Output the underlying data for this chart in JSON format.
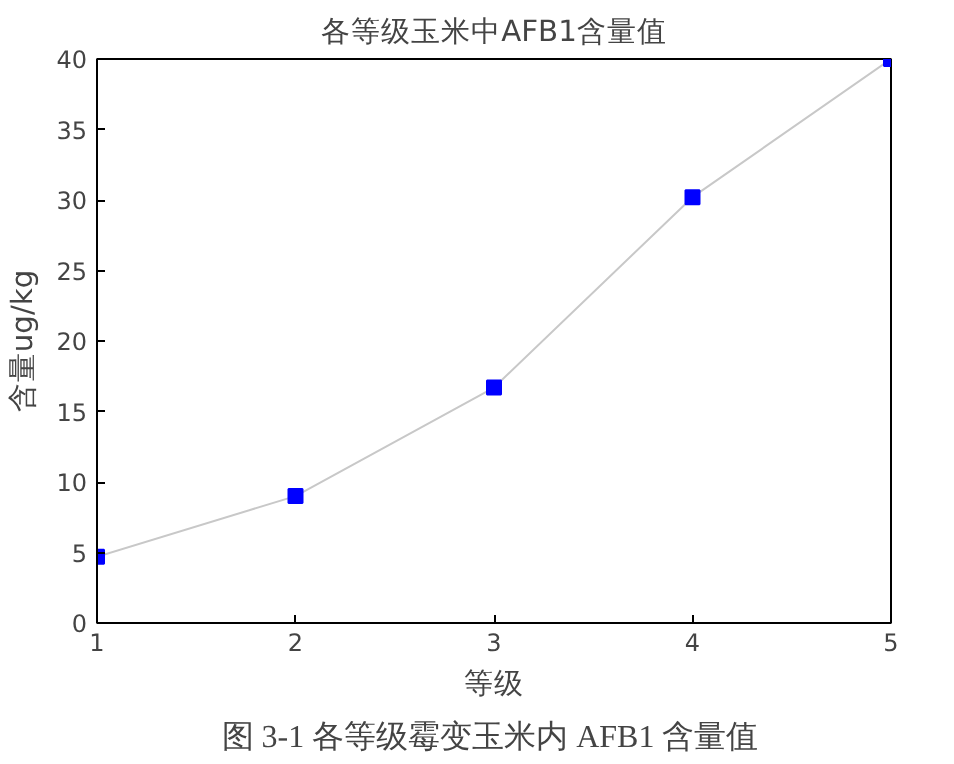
{
  "chart_data": {
    "type": "line",
    "title": "各等级玉米中AFB1含量值",
    "xlabel": "等级",
    "ylabel": "含量ug/kg",
    "x": [
      1,
      2,
      3,
      4,
      5
    ],
    "series": [
      {
        "color": "#0000ff",
        "values": [
          4.7,
          9.0,
          16.7,
          30.2,
          40.0
        ]
      }
    ],
    "xlim": [
      1,
      5
    ],
    "xticks": [
      1,
      2,
      3,
      4,
      5
    ],
    "ylim": [
      0,
      40
    ],
    "yticks": [
      0,
      5,
      10,
      15,
      20,
      25,
      30,
      35,
      40
    ],
    "marker": "square",
    "line_style": "solid",
    "grid": false,
    "annotations": [
      "图 3-1  各等级霉变玉米内 AFB1 含量值"
    ]
  }
}
